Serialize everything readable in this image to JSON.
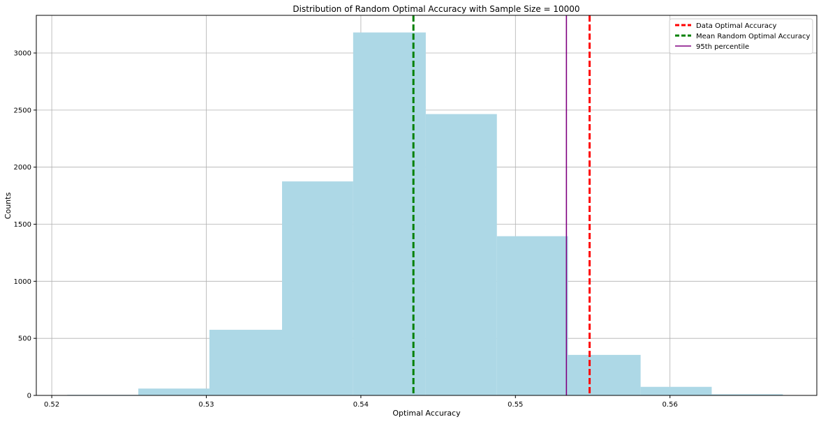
{
  "chart_data": {
    "type": "bar",
    "title": "Distribution of Random Optimal Accuracy with Sample Size =  10000",
    "xlabel": "Optimal Accuracy",
    "ylabel": "Counts",
    "xlim": [
      0.519,
      0.5695
    ],
    "ylim": [
      0,
      3330
    ],
    "grid": true,
    "legend_position": "top-right",
    "x_ticks": [
      0.52,
      0.53,
      0.54,
      0.55,
      0.56
    ],
    "x_tick_labels": [
      "0.52",
      "0.53",
      "0.54",
      "0.55",
      "0.56"
    ],
    "y_ticks": [
      0,
      500,
      1000,
      1500,
      2000,
      2500,
      3000
    ],
    "y_tick_labels": [
      "0",
      "500",
      "1000",
      "1500",
      "2000",
      "2500",
      "3000"
    ],
    "histogram": {
      "color": "#add8e6",
      "bin_edges": [
        0.521,
        0.5256,
        0.5302,
        0.5349,
        0.5395,
        0.5442,
        0.5488,
        0.5534,
        0.5581,
        0.5627,
        0.5673
      ],
      "counts": [
        5,
        60,
        575,
        1875,
        3180,
        2465,
        1395,
        355,
        75,
        10
      ]
    },
    "reference_lines": [
      {
        "name": "Data Optimal Accuracy",
        "x": 0.5548,
        "color": "#ff0000",
        "style": "dashed"
      },
      {
        "name": "Mean Random Optimal Accuracy",
        "x": 0.5434,
        "color": "#008000",
        "style": "dashed"
      },
      {
        "name": "95th percentile",
        "x": 0.5533,
        "color": "#800080",
        "style": "solid"
      }
    ]
  }
}
